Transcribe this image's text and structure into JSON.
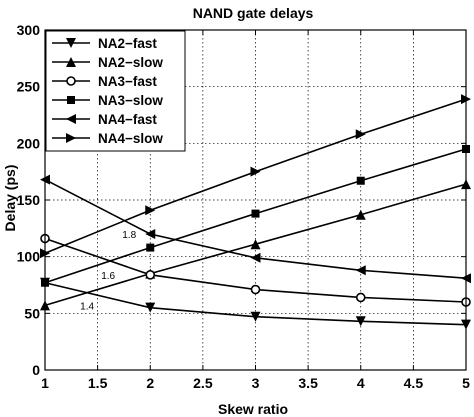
{
  "chart_data": {
    "type": "line",
    "title": "NAND gate delays",
    "xlabel": "Skew ratio",
    "ylabel": "Delay (ps)",
    "xlim": [
      1,
      5
    ],
    "ylim": [
      0,
      300
    ],
    "xticks": [
      "1",
      "1.5",
      "2",
      "2.5",
      "3",
      "3.5",
      "4",
      "4.5",
      "5"
    ],
    "yticks": [
      "0",
      "50",
      "100",
      "150",
      "200",
      "250",
      "300"
    ],
    "grid": true,
    "legend_position": "top-left",
    "x": [
      1,
      2,
      3,
      4,
      5
    ],
    "series": [
      {
        "name": "NA2−fast",
        "marker": "triangle-down",
        "values": [
          77,
          55,
          47,
          43,
          40
        ]
      },
      {
        "name": "NA2−slow",
        "marker": "triangle-up",
        "values": [
          57,
          85,
          111,
          137,
          164
        ]
      },
      {
        "name": "NA3−fast",
        "marker": "circle",
        "values": [
          116,
          84,
          71,
          64,
          60
        ]
      },
      {
        "name": "NA3−slow",
        "marker": "square",
        "values": [
          77,
          108,
          138,
          167,
          195
        ]
      },
      {
        "name": "NA4−fast",
        "marker": "triangle-left",
        "values": [
          168,
          120,
          99,
          88,
          81
        ]
      },
      {
        "name": "NA4−slow",
        "marker": "triangle-right",
        "values": [
          103,
          141,
          175,
          208,
          239
        ]
      }
    ],
    "annotations": [
      {
        "text": "1.8",
        "x": 1.8,
        "y": 120
      },
      {
        "text": "1.6",
        "x": 1.6,
        "y": 84
      },
      {
        "text": "1.4",
        "x": 1.4,
        "y": 57
      }
    ]
  }
}
